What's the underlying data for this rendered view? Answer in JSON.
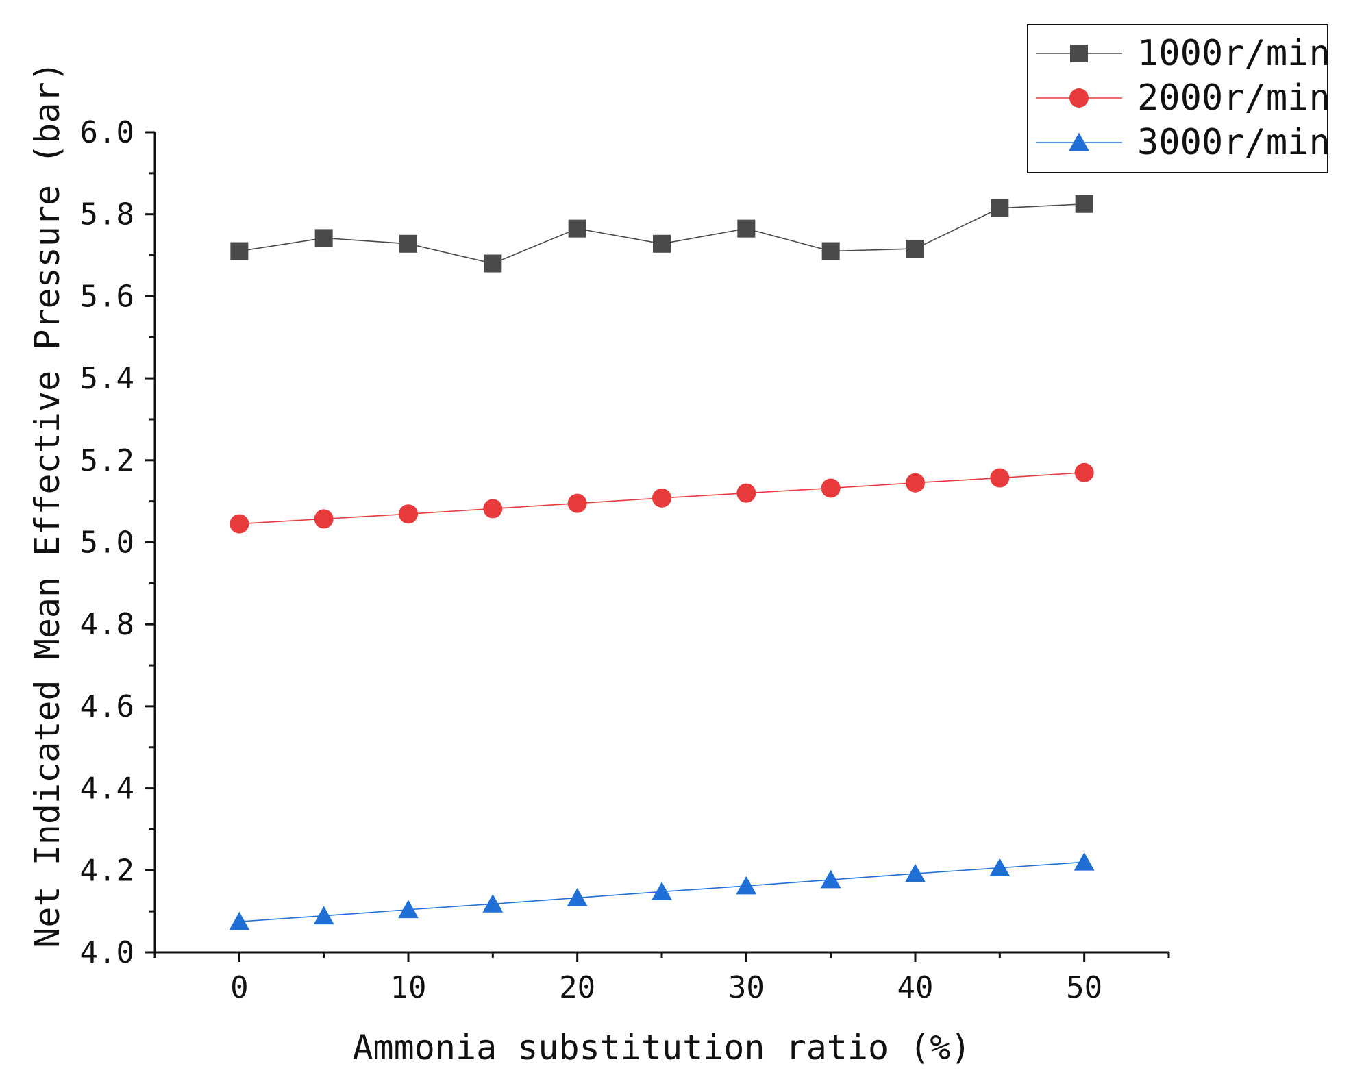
{
  "chart_data": {
    "type": "line",
    "title": "",
    "xlabel": "Ammonia substitution ratio (%)",
    "ylabel": "Net Indicated Mean Effective Pressure (bar)",
    "xlim": [
      -5,
      55
    ],
    "ylim": [
      4.0,
      6.0
    ],
    "xticks": [
      0,
      10,
      20,
      30,
      40,
      50
    ],
    "xtick_labels": [
      "0",
      "10",
      "20",
      "30",
      "40",
      "50"
    ],
    "yticks": [
      4.0,
      4.2,
      4.4,
      4.6,
      4.8,
      5.0,
      5.2,
      5.4,
      5.6,
      5.8,
      6.0
    ],
    "ytick_labels": [
      "4.0",
      "4.2",
      "4.4",
      "4.6",
      "4.8",
      "5.0",
      "5.2",
      "5.4",
      "5.6",
      "5.8",
      "6.0"
    ],
    "grid": false,
    "legend_position": "top-right",
    "x": [
      0,
      5,
      10,
      15,
      20,
      25,
      30,
      35,
      40,
      45,
      50
    ],
    "series": [
      {
        "name": "1000r/min",
        "color": "#4a4a4a",
        "marker": "square",
        "values": [
          5.71,
          5.742,
          5.728,
          5.68,
          5.765,
          5.728,
          5.765,
          5.71,
          5.716,
          5.815,
          5.825
        ]
      },
      {
        "name": "2000r/min",
        "color": "#e8393b",
        "marker": "circle",
        "values": [
          5.045,
          5.057,
          5.069,
          5.082,
          5.095,
          5.108,
          5.12,
          5.132,
          5.145,
          5.157,
          5.17
        ]
      },
      {
        "name": "3000r/min",
        "color": "#1f6fd6",
        "marker": "triangle",
        "values": [
          4.075,
          4.089,
          4.104,
          4.118,
          4.133,
          4.148,
          4.162,
          4.177,
          4.192,
          4.206,
          4.22
        ]
      }
    ]
  }
}
